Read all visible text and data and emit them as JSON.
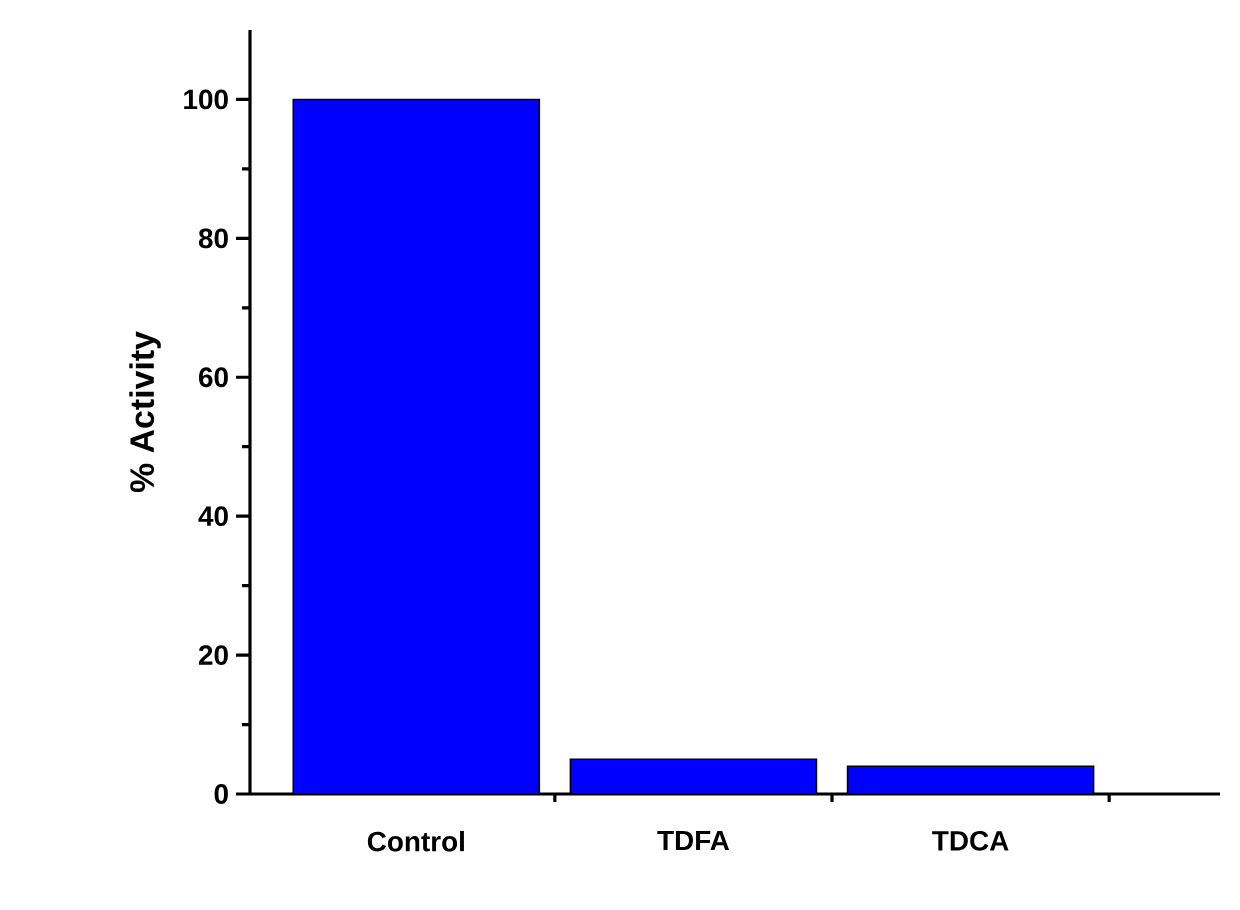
{
  "chart_data": {
    "type": "bar",
    "ylabel": "% Activity",
    "categories": [
      "Control",
      "TDFA",
      "TDCA"
    ],
    "values": [
      100,
      5,
      4
    ],
    "color": "#0000ff",
    "ylim": [
      0,
      110
    ],
    "yticks": [
      0,
      20,
      40,
      60,
      80,
      100
    ],
    "grid": false
  }
}
